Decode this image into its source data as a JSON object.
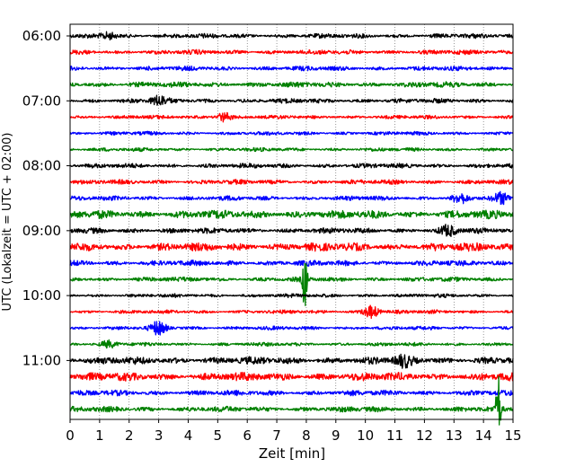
{
  "chart_data": {
    "type": "line",
    "chart_kind": "seismic helicorder (dayplot)",
    "title": "",
    "xlabel": "Zeit  [min]",
    "ylabel": "UTC (Lokalzeit = UTC + 02:00)",
    "xlim": [
      0,
      15
    ],
    "x_ticks": [
      "0",
      "1",
      "2",
      "3",
      "4",
      "5",
      "6",
      "7",
      "8",
      "9",
      "10",
      "11",
      "12",
      "13",
      "14",
      "15"
    ],
    "y_ticks": [
      "06:00",
      "07:00",
      "08:00",
      "09:00",
      "10:00",
      "11:00"
    ],
    "y_tick_rows": [
      0,
      4,
      8,
      12,
      16,
      20
    ],
    "grid": "vertical dotted at each minute",
    "trace_colors": [
      "#000000",
      "#ff0000",
      "#0000ff",
      "#008000"
    ],
    "traces": [
      {
        "start": "06:00",
        "amp": 2.5,
        "color": "#000000",
        "events": [
          {
            "t": 1.3,
            "a": 4
          }
        ]
      },
      {
        "start": "06:15",
        "amp": 2.5,
        "color": "#ff0000",
        "events": []
      },
      {
        "start": "06:30",
        "amp": 2.5,
        "color": "#0000ff",
        "events": []
      },
      {
        "start": "06:45",
        "amp": 3,
        "color": "#008000",
        "events": []
      },
      {
        "start": "07:00",
        "amp": 2.5,
        "color": "#000000",
        "events": [
          {
            "t": 3.0,
            "a": 5
          }
        ]
      },
      {
        "start": "07:15",
        "amp": 2,
        "color": "#ff0000",
        "events": [
          {
            "t": 5.2,
            "a": 5
          }
        ]
      },
      {
        "start": "07:30",
        "amp": 2,
        "color": "#0000ff",
        "events": []
      },
      {
        "start": "07:45",
        "amp": 2,
        "color": "#008000",
        "events": []
      },
      {
        "start": "08:00",
        "amp": 2.5,
        "color": "#000000",
        "events": []
      },
      {
        "start": "08:15",
        "amp": 2.5,
        "color": "#ff0000",
        "events": []
      },
      {
        "start": "08:30",
        "amp": 2.5,
        "color": "#0000ff",
        "events": [
          {
            "t": 13.2,
            "a": 5
          },
          {
            "t": 14.6,
            "a": 5
          }
        ]
      },
      {
        "start": "08:45",
        "amp": 4.5,
        "color": "#008000",
        "events": []
      },
      {
        "start": "09:00",
        "amp": 3,
        "color": "#000000",
        "events": [
          {
            "t": 12.8,
            "a": 5
          }
        ]
      },
      {
        "start": "09:15",
        "amp": 4.5,
        "color": "#ff0000",
        "events": []
      },
      {
        "start": "09:30",
        "amp": 3,
        "color": "#0000ff",
        "events": []
      },
      {
        "start": "09:45",
        "amp": 2.5,
        "color": "#008000",
        "events": [
          {
            "t": 7.95,
            "a": 38
          }
        ]
      },
      {
        "start": "10:00",
        "amp": 2,
        "color": "#000000",
        "events": []
      },
      {
        "start": "10:15",
        "amp": 2,
        "color": "#ff0000",
        "events": [
          {
            "t": 10.2,
            "a": 7
          }
        ]
      },
      {
        "start": "10:30",
        "amp": 2,
        "color": "#0000ff",
        "events": [
          {
            "t": 3.0,
            "a": 7
          }
        ]
      },
      {
        "start": "10:45",
        "amp": 2,
        "color": "#008000",
        "events": [
          {
            "t": 1.3,
            "a": 3
          }
        ]
      },
      {
        "start": "11:00",
        "amp": 4,
        "color": "#000000",
        "events": [
          {
            "t": 11.3,
            "a": 5
          }
        ]
      },
      {
        "start": "11:15",
        "amp": 4.5,
        "color": "#ff0000",
        "events": []
      },
      {
        "start": "11:30",
        "amp": 3,
        "color": "#0000ff",
        "events": []
      },
      {
        "start": "11:45",
        "amp": 3,
        "color": "#008000",
        "events": [
          {
            "t": 14.5,
            "a": 42
          }
        ]
      }
    ]
  }
}
